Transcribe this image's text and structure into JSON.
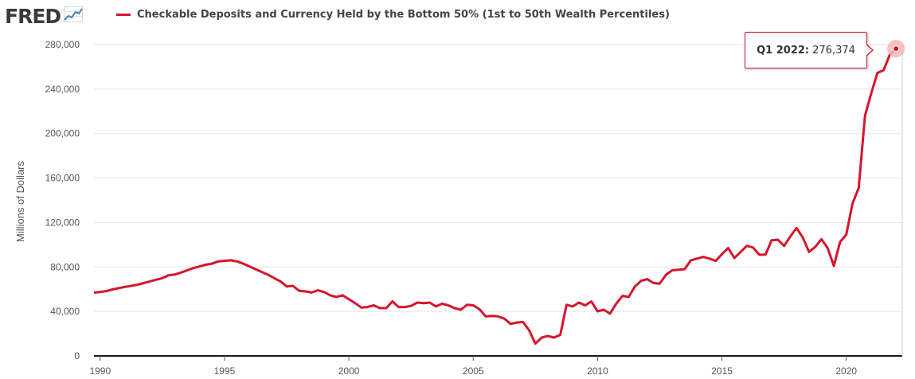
{
  "header": {
    "logo_text": "FRED",
    "logo_icon": "trend-chart-icon"
  },
  "tooltip": {
    "label": "Q1 2022:",
    "value": "276,374"
  },
  "colors": {
    "series": "#d4162d",
    "grid": "#e6e6e6",
    "axis_text": "#555555",
    "marker_halo": "#f4b6bf"
  },
  "chart_data": {
    "type": "line",
    "title": "",
    "ylabel": "Millions of Dollars",
    "xlabel": "",
    "ylim": [
      0,
      280000
    ],
    "xlim": [
      1989.75,
      2022.25
    ],
    "y_ticks": [
      0,
      40000,
      80000,
      120000,
      160000,
      200000,
      240000,
      280000
    ],
    "y_tick_labels": [
      "0",
      "40,000",
      "80,000",
      "120,000",
      "160,000",
      "200,000",
      "240,000",
      "280,000"
    ],
    "x_ticks": [
      1990,
      1995,
      2000,
      2005,
      2010,
      2015,
      2020
    ],
    "x_tick_labels": [
      "1990",
      "1995",
      "2000",
      "2005",
      "2010",
      "2015",
      "2020"
    ],
    "grid": true,
    "legend": "top-left",
    "series": [
      {
        "name": "Checkable Deposits and Currency Held by the Bottom 50% (1st to 50th Wealth Percentiles)",
        "x": [
          1989.5,
          1989.75,
          1990.0,
          1990.25,
          1990.5,
          1990.75,
          1991.0,
          1991.25,
          1991.5,
          1991.75,
          1992.0,
          1992.25,
          1992.5,
          1992.75,
          1993.0,
          1993.25,
          1993.5,
          1993.75,
          1994.0,
          1994.25,
          1994.5,
          1994.75,
          1995.0,
          1995.25,
          1995.5,
          1995.75,
          1996.0,
          1996.25,
          1996.5,
          1996.75,
          1997.0,
          1997.25,
          1997.5,
          1997.75,
          1998.0,
          1998.25,
          1998.5,
          1998.75,
          1999.0,
          1999.25,
          1999.5,
          1999.75,
          2000.0,
          2000.25,
          2000.5,
          2000.75,
          2001.0,
          2001.25,
          2001.5,
          2001.75,
          2002.0,
          2002.25,
          2002.5,
          2002.75,
          2003.0,
          2003.25,
          2003.5,
          2003.75,
          2004.0,
          2004.25,
          2004.5,
          2004.75,
          2005.0,
          2005.25,
          2005.5,
          2005.75,
          2006.0,
          2006.25,
          2006.5,
          2006.75,
          2007.0,
          2007.25,
          2007.5,
          2007.75,
          2008.0,
          2008.25,
          2008.5,
          2008.75,
          2009.0,
          2009.25,
          2009.5,
          2009.75,
          2010.0,
          2010.25,
          2010.5,
          2010.75,
          2011.0,
          2011.25,
          2011.5,
          2011.75,
          2012.0,
          2012.25,
          2012.5,
          2012.75,
          2013.0,
          2013.25,
          2013.5,
          2013.75,
          2014.0,
          2014.25,
          2014.5,
          2014.75,
          2015.0,
          2015.25,
          2015.5,
          2015.75,
          2016.0,
          2016.25,
          2016.5,
          2016.75,
          2017.0,
          2017.25,
          2017.5,
          2017.75,
          2018.0,
          2018.25,
          2018.5,
          2018.75,
          2019.0,
          2019.25,
          2019.5,
          2019.75,
          2020.0,
          2020.25,
          2020.5,
          2020.75,
          2021.0,
          2021.25,
          2021.5,
          2021.75,
          2022.0
        ],
        "values": [
          55600,
          56900,
          57500,
          58300,
          59800,
          61000,
          62100,
          63000,
          64000,
          65500,
          67000,
          68500,
          70000,
          72500,
          73200,
          75000,
          77000,
          79000,
          80500,
          82000,
          83000,
          85000,
          85500,
          86000,
          85000,
          83000,
          80500,
          78000,
          75500,
          73000,
          70000,
          67000,
          62500,
          63000,
          58600,
          58000,
          57000,
          59000,
          57500,
          54500,
          53000,
          54500,
          51000,
          47500,
          43500,
          44000,
          45500,
          43000,
          43000,
          49000,
          44000,
          44000,
          45000,
          48000,
          47500,
          48000,
          44500,
          47000,
          45500,
          43000,
          41500,
          46000,
          45500,
          42000,
          35500,
          36000,
          35500,
          33500,
          28800,
          30000,
          30500,
          23000,
          11000,
          16500,
          18000,
          16500,
          19000,
          46000,
          44500,
          48000,
          45500,
          49000,
          40000,
          41500,
          38000,
          47000,
          54000,
          53000,
          62500,
          67500,
          69000,
          65500,
          65000,
          73000,
          77000,
          77500,
          78000,
          86000,
          87500,
          89000,
          87500,
          85500,
          91500,
          97000,
          88000,
          93500,
          99000,
          97500,
          91000,
          91000,
          104000,
          104500,
          99000,
          107500,
          115000,
          106500,
          93500,
          98000,
          105000,
          97000,
          81000,
          102500,
          109000,
          137000,
          151000,
          216000,
          236000,
          254500,
          257000,
          271000,
          276374
        ]
      }
    ]
  }
}
